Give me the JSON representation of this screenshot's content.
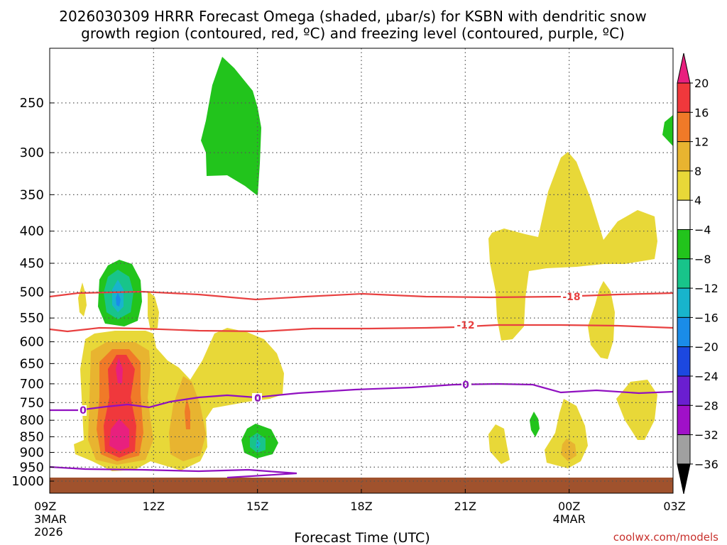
{
  "chart_data": {
    "type": "heatmap",
    "title_line1": "2026030309 HRRR Forecast Omega (shaded, μbar/s) for KSBN with dendritic snow",
    "title_line2": "growth region (contoured, red, ºC) and freezing level (contoured, purple, ºC)",
    "xlabel": "Forecast Time (UTC)",
    "source": "coolwx.com/models",
    "x_range_hours": [
      0,
      18
    ],
    "x_ticks": [
      {
        "hour": 0,
        "label": "09Z",
        "sub1": "3MAR",
        "sub2": "2026"
      },
      {
        "hour": 3,
        "label": "12Z"
      },
      {
        "hour": 6,
        "label": "15Z"
      },
      {
        "hour": 9,
        "label": "18Z"
      },
      {
        "hour": 12,
        "label": "21Z"
      },
      {
        "hour": 15,
        "label": "00Z",
        "sub1": "4MAR"
      },
      {
        "hour": 18,
        "label": "03Z"
      }
    ],
    "y_ticks": [
      "250",
      "300",
      "350",
      "400",
      "450",
      "500",
      "550",
      "600",
      "650",
      "700",
      "750",
      "800",
      "850",
      "900",
      "950",
      "1000"
    ],
    "colorbar": {
      "labels": [
        "20",
        "16",
        "12",
        "8",
        "4",
        "-4",
        "-8",
        "-12",
        "-16",
        "-20",
        "-24",
        "-28",
        "-32",
        "-36"
      ],
      "colors": [
        "#e8207e",
        "#f0383c",
        "#f07a28",
        "#e8b430",
        "#e8d838",
        "#ffffff",
        "#22c41c",
        "#18c48a",
        "#18b4cc",
        "#1a8ce8",
        "#1c48e0",
        "#6a1ed0",
        "#a010c8",
        "#a0a0a0",
        "#000000"
      ]
    },
    "contours": {
      "dendritic": [
        {
          "value": -18,
          "label": "-18"
        },
        {
          "value": -12,
          "label": "-12"
        }
      ],
      "freezing_level": [
        {
          "value": 0,
          "label": "0"
        }
      ]
    },
    "contour_colors": {
      "dendritic": "#e84040",
      "freezing": "#9010c0"
    },
    "ground_color": "#a0522d"
  }
}
